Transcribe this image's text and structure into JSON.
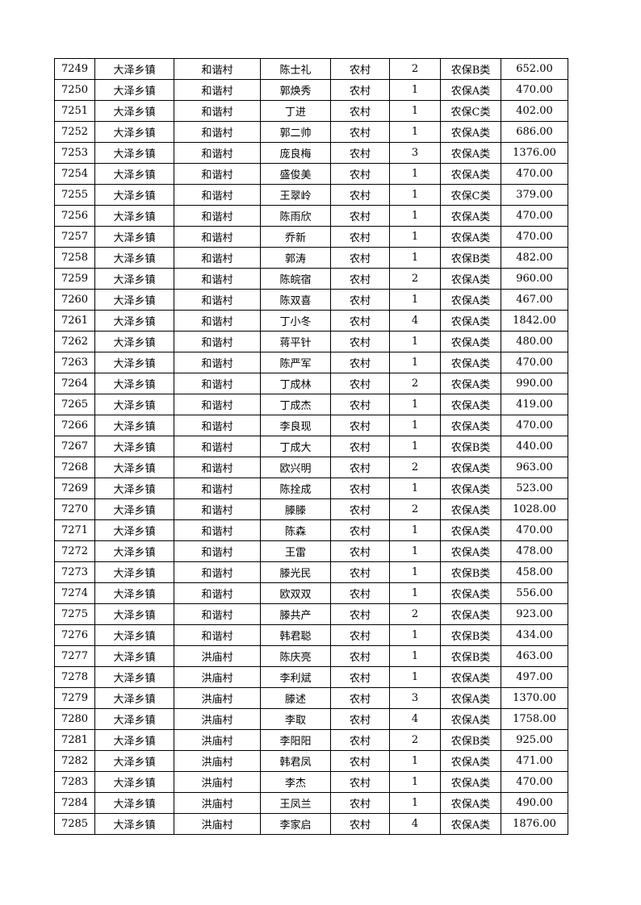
{
  "table": {
    "rows": [
      [
        "7249",
        "大泽乡镇",
        "和谐村",
        "陈士礼",
        "农村",
        "2",
        "农保B类",
        "652.00"
      ],
      [
        "7250",
        "大泽乡镇",
        "和谐村",
        "郭焕秀",
        "农村",
        "1",
        "农保A类",
        "470.00"
      ],
      [
        "7251",
        "大泽乡镇",
        "和谐村",
        "丁进",
        "农村",
        "1",
        "农保C类",
        "402.00"
      ],
      [
        "7252",
        "大泽乡镇",
        "和谐村",
        "郭二帅",
        "农村",
        "1",
        "农保A类",
        "686.00"
      ],
      [
        "7253",
        "大泽乡镇",
        "和谐村",
        "庞良梅",
        "农村",
        "3",
        "农保A类",
        "1376.00"
      ],
      [
        "7254",
        "大泽乡镇",
        "和谐村",
        "盛俊美",
        "农村",
        "1",
        "农保A类",
        "470.00"
      ],
      [
        "7255",
        "大泽乡镇",
        "和谐村",
        "王翠岭",
        "农村",
        "1",
        "农保C类",
        "379.00"
      ],
      [
        "7256",
        "大泽乡镇",
        "和谐村",
        "陈雨欣",
        "农村",
        "1",
        "农保A类",
        "470.00"
      ],
      [
        "7257",
        "大泽乡镇",
        "和谐村",
        "乔新",
        "农村",
        "1",
        "农保A类",
        "470.00"
      ],
      [
        "7258",
        "大泽乡镇",
        "和谐村",
        "郭涛",
        "农村",
        "1",
        "农保B类",
        "482.00"
      ],
      [
        "7259",
        "大泽乡镇",
        "和谐村",
        "陈皖宿",
        "农村",
        "2",
        "农保A类",
        "960.00"
      ],
      [
        "7260",
        "大泽乡镇",
        "和谐村",
        "陈双喜",
        "农村",
        "1",
        "农保A类",
        "467.00"
      ],
      [
        "7261",
        "大泽乡镇",
        "和谐村",
        "丁小冬",
        "农村",
        "4",
        "农保A类",
        "1842.00"
      ],
      [
        "7262",
        "大泽乡镇",
        "和谐村",
        "蒋平针",
        "农村",
        "1",
        "农保A类",
        "480.00"
      ],
      [
        "7263",
        "大泽乡镇",
        "和谐村",
        "陈严军",
        "农村",
        "1",
        "农保A类",
        "470.00"
      ],
      [
        "7264",
        "大泽乡镇",
        "和谐村",
        "丁成林",
        "农村",
        "2",
        "农保A类",
        "990.00"
      ],
      [
        "7265",
        "大泽乡镇",
        "和谐村",
        "丁成杰",
        "农村",
        "1",
        "农保A类",
        "419.00"
      ],
      [
        "7266",
        "大泽乡镇",
        "和谐村",
        "李良现",
        "农村",
        "1",
        "农保A类",
        "470.00"
      ],
      [
        "7267",
        "大泽乡镇",
        "和谐村",
        "丁成大",
        "农村",
        "1",
        "农保B类",
        "440.00"
      ],
      [
        "7268",
        "大泽乡镇",
        "和谐村",
        "欧兴明",
        "农村",
        "2",
        "农保A类",
        "963.00"
      ],
      [
        "7269",
        "大泽乡镇",
        "和谐村",
        "陈拴成",
        "农村",
        "1",
        "农保A类",
        "523.00"
      ],
      [
        "7270",
        "大泽乡镇",
        "和谐村",
        "滕滕",
        "农村",
        "2",
        "农保A类",
        "1028.00"
      ],
      [
        "7271",
        "大泽乡镇",
        "和谐村",
        "陈森",
        "农村",
        "1",
        "农保A类",
        "470.00"
      ],
      [
        "7272",
        "大泽乡镇",
        "和谐村",
        "王雷",
        "农村",
        "1",
        "农保A类",
        "478.00"
      ],
      [
        "7273",
        "大泽乡镇",
        "和谐村",
        "滕光民",
        "农村",
        "1",
        "农保B类",
        "458.00"
      ],
      [
        "7274",
        "大泽乡镇",
        "和谐村",
        "欧双双",
        "农村",
        "1",
        "农保A类",
        "556.00"
      ],
      [
        "7275",
        "大泽乡镇",
        "和谐村",
        "滕共产",
        "农村",
        "2",
        "农保A类",
        "923.00"
      ],
      [
        "7276",
        "大泽乡镇",
        "和谐村",
        "韩君聪",
        "农村",
        "1",
        "农保B类",
        "434.00"
      ],
      [
        "7277",
        "大泽乡镇",
        "洪庙村",
        "陈庆亮",
        "农村",
        "1",
        "农保B类",
        "463.00"
      ],
      [
        "7278",
        "大泽乡镇",
        "洪庙村",
        "李利斌",
        "农村",
        "1",
        "农保A类",
        "497.00"
      ],
      [
        "7279",
        "大泽乡镇",
        "洪庙村",
        "滕述",
        "农村",
        "3",
        "农保A类",
        "1370.00"
      ],
      [
        "7280",
        "大泽乡镇",
        "洪庙村",
        "李取",
        "农村",
        "4",
        "农保A类",
        "1758.00"
      ],
      [
        "7281",
        "大泽乡镇",
        "洪庙村",
        "李阳阳",
        "农村",
        "2",
        "农保B类",
        "925.00"
      ],
      [
        "7282",
        "大泽乡镇",
        "洪庙村",
        "韩君凤",
        "农村",
        "1",
        "农保A类",
        "471.00"
      ],
      [
        "7283",
        "大泽乡镇",
        "洪庙村",
        "李杰",
        "农村",
        "1",
        "农保A类",
        "470.00"
      ],
      [
        "7284",
        "大泽乡镇",
        "洪庙村",
        "王凤兰",
        "农村",
        "1",
        "农保A类",
        "490.00"
      ],
      [
        "7285",
        "大泽乡镇",
        "洪庙村",
        "李家启",
        "农村",
        "4",
        "农保A类",
        "1876.00"
      ]
    ]
  }
}
